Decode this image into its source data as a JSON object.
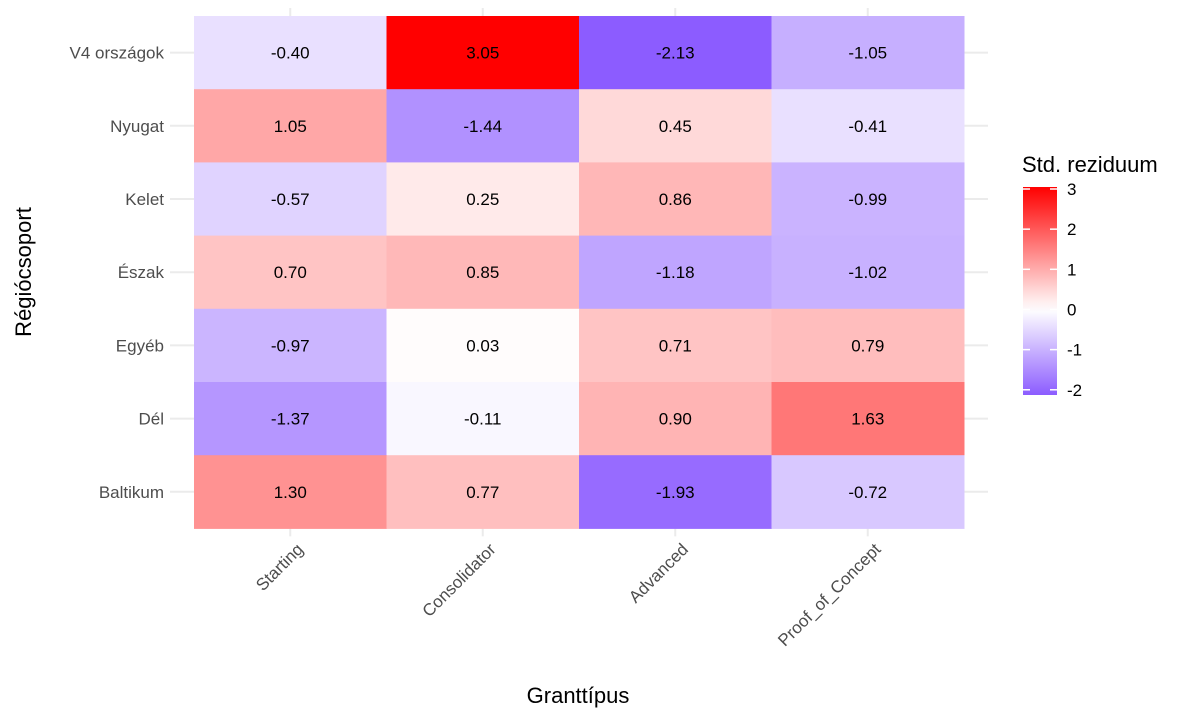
{
  "chart_data": {
    "type": "heatmap",
    "x_categories": [
      "Starting",
      "Consolidator",
      "Advanced",
      "Proof_of_Concept"
    ],
    "y_categories": [
      "V4 országok",
      "Nyugat",
      "Kelet",
      "Észak",
      "Egyéb",
      "Dél",
      "Baltikum"
    ],
    "values": [
      [
        -0.4,
        3.05,
        -2.13,
        -1.05
      ],
      [
        1.05,
        -1.44,
        0.45,
        -0.41
      ],
      [
        -0.57,
        0.25,
        0.86,
        -0.99
      ],
      [
        0.7,
        0.85,
        -1.18,
        -1.02
      ],
      [
        -0.97,
        0.03,
        0.71,
        0.79
      ],
      [
        -1.37,
        -0.11,
        0.9,
        1.63
      ],
      [
        1.3,
        0.77,
        -1.93,
        -0.72
      ]
    ],
    "labels": [
      [
        "-0.40",
        "3.05",
        "-2.13",
        "-1.05"
      ],
      [
        "1.05",
        "-1.44",
        "0.45",
        "-0.41"
      ],
      [
        "-0.57",
        "0.25",
        "0.86",
        "-0.99"
      ],
      [
        "0.70",
        "0.85",
        "-1.18",
        "-1.02"
      ],
      [
        "-0.97",
        "0.03",
        "0.71",
        "0.79"
      ],
      [
        "-1.37",
        "-0.11",
        "0.90",
        "1.63"
      ],
      [
        "1.30",
        "0.77",
        "-1.93",
        "-0.72"
      ]
    ],
    "xlabel": "Granttípus",
    "ylabel": "Régiócsoport",
    "legend": {
      "title": "Std. reziduum",
      "ticks": [
        "3",
        "2",
        "1",
        "0",
        "-1",
        "-2"
      ],
      "range": [
        -2.13,
        3.05
      ],
      "placement": "right"
    },
    "colors": {
      "low": "#8c5cff",
      "mid": "#ffffff",
      "high": "#ff0000"
    },
    "grid": true
  }
}
